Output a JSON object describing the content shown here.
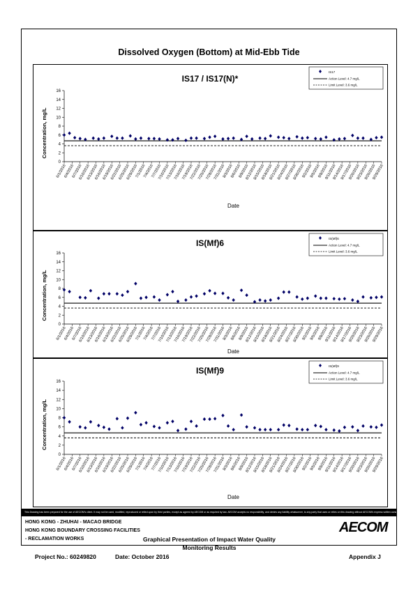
{
  "page_title": "Dissolved Oxygen (Bottom) at Mid-Ebb Tide",
  "disclaimer": "This Drawing has been prepared for the use of AECOM's client. It may not be used, modified, reproduced or relied upon by third parties, except as agreed by AECOM or as required by law. AECOM accepts no responsibility, and denies any liability whatsoever, to any party that uses or relies on this drawing without AECOM's express written consent.",
  "footer": {
    "line1": "HONG KONG - ZHUHAI - MACAO BRIDGE",
    "line2": "HONG KONG BOUNDARY CROSSING FACILITIES",
    "line3": "- RECLAMATION WORKS",
    "center_title_1": "Graphical Presentation of Impact Water Quality",
    "center_title_2": "Monitoring Results",
    "logo": "AECOM",
    "project": "Project No.: 60249820",
    "date": "Date: October 2016",
    "appendix": "Appendix J"
  },
  "colors": {
    "marker": "#000066",
    "line": "#000000"
  },
  "chart_data": [
    {
      "type": "scatter",
      "title": "IS17 / IS17(N)*",
      "xlabel": "Date",
      "ylabel": "Concentration, mg/L",
      "ylim": [
        0,
        16
      ],
      "yticks": [
        "0",
        "2",
        "4",
        "6",
        "8",
        "10",
        "12",
        "14",
        "16"
      ],
      "xticks": [
        "6/1/2016",
        "6/4/2016",
        "6/7/2016",
        "6/10/2016",
        "6/13/2016",
        "6/16/2016",
        "6/19/2016",
        "6/22/2016",
        "6/25/2016",
        "6/28/2016",
        "7/1/2016",
        "7/4/2016",
        "7/7/2016",
        "7/10/2016",
        "7/13/2016",
        "7/16/2016",
        "7/19/2016",
        "7/22/2016",
        "7/25/2016",
        "7/28/2016",
        "7/31/2016",
        "8/3/2016",
        "8/6/2016",
        "8/9/2016",
        "8/12/2016",
        "8/15/2016",
        "8/18/2016",
        "8/21/2016",
        "8/24/2016",
        "8/27/2016",
        "8/30/2016",
        "9/2/2016",
        "9/5/2016",
        "9/8/2016",
        "9/11/2016",
        "9/14/2016",
        "9/17/2016",
        "9/20/2016",
        "9/23/2016",
        "9/26/2016",
        "9/29/2016"
      ],
      "legend": [
        "IS17",
        "Action Level: 4.7 mg/L",
        "Limit Level: 3.6 mg/L"
      ],
      "action_level": 4.7,
      "limit_level": 3.6,
      "x": [
        0,
        2,
        4,
        6,
        8,
        11,
        13,
        15,
        18,
        20,
        22,
        25,
        27,
        29,
        32,
        34,
        36,
        39,
        41,
        43,
        46,
        48,
        50,
        53,
        55,
        57,
        60,
        62,
        64,
        67,
        69,
        71,
        74,
        76,
        78,
        81,
        83,
        85,
        88,
        90,
        92,
        95,
        97,
        99,
        102,
        104,
        106,
        109,
        111,
        113,
        116,
        118,
        120
      ],
      "y": [
        6.0,
        6.4,
        5.4,
        5.2,
        5.0,
        5.3,
        5.1,
        5.3,
        5.7,
        5.3,
        5.3,
        5.8,
        5.1,
        5.3,
        5.2,
        5.2,
        5.1,
        4.9,
        4.9,
        5.2,
        4.8,
        5.3,
        5.3,
        5.2,
        5.5,
        5.7,
        5.1,
        5.2,
        5.3,
        5.0,
        5.7,
        5.1,
        5.3,
        5.2,
        5.8,
        5.5,
        5.4,
        5.2,
        5.6,
        5.3,
        5.4,
        5.2,
        5.1,
        5.5,
        4.9,
        5.1,
        5.2,
        5.9,
        5.3,
        5.3,
        5.0,
        5.4,
        5.5
      ]
    },
    {
      "type": "scatter",
      "title": "IS(Mf)6",
      "xlabel": "Date",
      "ylabel": "Concentration, mg/L",
      "ylim": [
        0,
        16
      ],
      "yticks": [
        "0",
        "2",
        "4",
        "6",
        "8",
        "10",
        "12",
        "14",
        "16"
      ],
      "xticks": [
        "6/1/2016",
        "6/4/2016",
        "6/7/2016",
        "6/10/2016",
        "6/13/2016",
        "6/16/2016",
        "6/19/2016",
        "6/22/2016",
        "6/25/2016",
        "6/28/2016",
        "7/1/2016",
        "7/4/2016",
        "7/7/2016",
        "7/10/2016",
        "7/13/2016",
        "7/16/2016",
        "7/19/2016",
        "7/22/2016",
        "7/25/2016",
        "7/28/2016",
        "7/31/2016",
        "8/3/2016",
        "8/6/2016",
        "8/9/2016",
        "8/12/2016",
        "8/15/2016",
        "8/18/2016",
        "8/21/2016",
        "8/24/2016",
        "8/27/2016",
        "8/30/2016",
        "9/2/2016",
        "9/5/2016",
        "9/8/2016",
        "9/11/2016",
        "9/14/2016",
        "9/17/2016",
        "9/20/2016",
        "9/23/2016",
        "9/26/2016",
        "9/29/2016"
      ],
      "legend": [
        "IS(Mf)6",
        "Action Level: 4.7 mg/L",
        "Limit Level: 3.6 mg/L"
      ],
      "action_level": 4.7,
      "limit_level": 3.6,
      "x": [
        0,
        2,
        6,
        8,
        10,
        13,
        15,
        17,
        20,
        22,
        24,
        27,
        29,
        31,
        34,
        36,
        39,
        41,
        43,
        46,
        48,
        50,
        53,
        55,
        57,
        60,
        62,
        64,
        67,
        69,
        72,
        74,
        76,
        78,
        81,
        83,
        85,
        88,
        90,
        92,
        95,
        97,
        99,
        102,
        104,
        106,
        109,
        111,
        113,
        116,
        118,
        120
      ],
      "y": [
        7.7,
        7.3,
        6.0,
        5.9,
        7.5,
        5.8,
        6.8,
        6.8,
        6.8,
        6.5,
        7.3,
        9.1,
        5.8,
        6.0,
        6.1,
        5.4,
        6.6,
        7.3,
        5.1,
        5.4,
        6.1,
        6.3,
        6.8,
        7.5,
        6.9,
        6.9,
        5.9,
        5.4,
        7.6,
        6.5,
        5.0,
        5.4,
        5.2,
        5.4,
        5.8,
        7.2,
        7.2,
        6.1,
        5.6,
        5.8,
        6.3,
        5.8,
        5.8,
        5.7,
        5.6,
        5.7,
        5.4,
        5.1,
        6.1,
        5.9,
        6.0,
        6.1
      ]
    },
    {
      "type": "scatter",
      "title": "IS(Mf)9",
      "xlabel": "Date",
      "ylabel": "Concentration, mg/L",
      "ylim": [
        0,
        16
      ],
      "yticks": [
        "0",
        "2",
        "4",
        "6",
        "8",
        "10",
        "12",
        "14",
        "16"
      ],
      "xticks": [
        "6/1/2016",
        "6/4/2016",
        "6/7/2016",
        "6/10/2016",
        "6/13/2016",
        "6/16/2016",
        "6/19/2016",
        "6/22/2016",
        "6/25/2016",
        "6/28/2016",
        "7/1/2016",
        "7/4/2016",
        "7/7/2016",
        "7/10/2016",
        "7/13/2016",
        "7/16/2016",
        "7/19/2016",
        "7/22/2016",
        "7/25/2016",
        "7/28/2016",
        "7/31/2016",
        "8/3/2016",
        "8/6/2016",
        "8/9/2016",
        "8/12/2016",
        "8/15/2016",
        "8/18/2016",
        "8/21/2016",
        "8/24/2016",
        "8/27/2016",
        "8/30/2016",
        "9/2/2016",
        "9/5/2016",
        "9/8/2016",
        "9/11/2016",
        "9/14/2016",
        "9/17/2016",
        "9/20/2016",
        "9/23/2016",
        "9/26/2016",
        "9/29/2016"
      ],
      "legend": [
        "IS(Mf)9",
        "Action Level: 4.7 mg/L",
        "Limit Level: 3.6 mg/L"
      ],
      "action_level": 4.7,
      "limit_level": 3.6,
      "x": [
        0,
        2,
        6,
        8,
        10,
        13,
        15,
        17,
        20,
        22,
        24,
        27,
        29,
        31,
        34,
        36,
        39,
        41,
        43,
        46,
        48,
        50,
        53,
        55,
        57,
        60,
        62,
        64,
        67,
        69,
        72,
        74,
        76,
        78,
        81,
        83,
        85,
        88,
        90,
        92,
        95,
        97,
        99,
        102,
        104,
        106,
        109,
        111,
        113,
        116,
        118,
        120
      ],
      "y": [
        8.0,
        7.1,
        6.0,
        5.8,
        7.1,
        6.3,
        5.9,
        5.5,
        7.8,
        5.8,
        7.9,
        9.1,
        6.5,
        6.9,
        6.1,
        5.8,
        6.9,
        7.2,
        5.2,
        5.5,
        7.2,
        6.2,
        7.7,
        7.7,
        7.8,
        8.5,
        6.2,
        5.4,
        8.6,
        6.0,
        5.8,
        5.4,
        5.4,
        5.4,
        5.4,
        6.4,
        6.3,
        5.5,
        5.4,
        5.4,
        6.3,
        6.1,
        5.4,
        5.3,
        5.1,
        5.9,
        6.0,
        5.2,
        6.2,
        6.0,
        5.9,
        6.4
      ]
    }
  ]
}
